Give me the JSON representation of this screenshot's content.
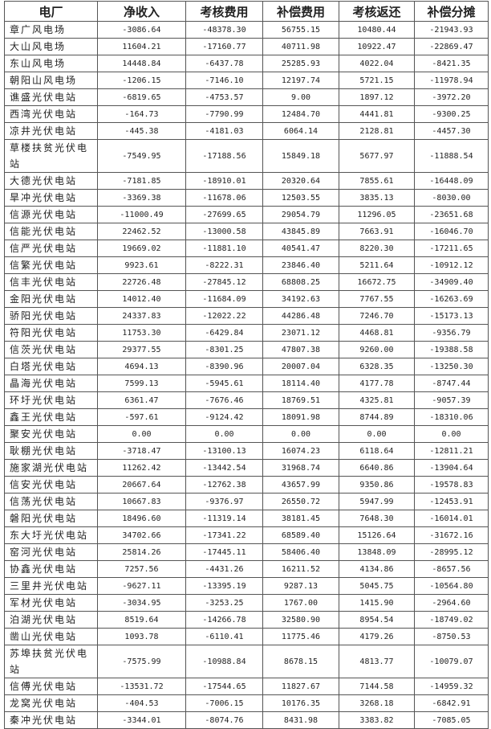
{
  "table": {
    "headers": [
      "电厂",
      "净收入",
      "考核费用",
      "补偿费用",
      "考核返还",
      "补偿分摊"
    ],
    "rows": [
      [
        "章广风电场",
        "-3086.64",
        "-48378.30",
        "56755.15",
        "10480.44",
        "-21943.93"
      ],
      [
        "大山风电场",
        "11604.21",
        "-17160.77",
        "40711.98",
        "10922.47",
        "-22869.47"
      ],
      [
        "东山风电场",
        "14448.84",
        "-6437.78",
        "25285.93",
        "4022.04",
        "-8421.35"
      ],
      [
        "朝阳山风电场",
        "-1206.15",
        "-7146.10",
        "12197.74",
        "5721.15",
        "-11978.94"
      ],
      [
        "谯盛光伏电站",
        "-6819.65",
        "-4753.57",
        "9.00",
        "1897.12",
        "-3972.20"
      ],
      [
        "西湾光伏电站",
        "-164.73",
        "-7790.99",
        "12484.70",
        "4441.81",
        "-9300.25"
      ],
      [
        "凉井光伏电站",
        "-445.38",
        "-4181.03",
        "6064.14",
        "2128.81",
        "-4457.30"
      ],
      [
        "草楼扶贫光伏电站",
        "-7549.95",
        "-17188.56",
        "15849.18",
        "5677.97",
        "-11888.54"
      ],
      [
        "大德光伏电站",
        "-7181.85",
        "-18910.01",
        "20320.64",
        "7855.61",
        "-16448.09"
      ],
      [
        "旱冲光伏电站",
        "-3369.38",
        "-11678.06",
        "12503.55",
        "3835.13",
        "-8030.00"
      ],
      [
        "信源光伏电站",
        "-11000.49",
        "-27699.65",
        "29054.79",
        "11296.05",
        "-23651.68"
      ],
      [
        "信能光伏电站",
        "22462.52",
        "-13000.58",
        "43845.89",
        "7663.91",
        "-16046.70"
      ],
      [
        "信严光伏电站",
        "19669.02",
        "-11881.10",
        "40541.47",
        "8220.30",
        "-17211.65"
      ],
      [
        "信繁光伏电站",
        "9923.61",
        "-8222.31",
        "23846.40",
        "5211.64",
        "-10912.12"
      ],
      [
        "信丰光伏电站",
        "22726.48",
        "-27845.12",
        "68808.25",
        "16672.75",
        "-34909.40"
      ],
      [
        "金阳光伏电站",
        "14012.40",
        "-11684.09",
        "34192.63",
        "7767.55",
        "-16263.69"
      ],
      [
        "骄阳光伏电站",
        "24337.83",
        "-12022.22",
        "44286.48",
        "7246.70",
        "-15173.13"
      ],
      [
        "符阳光伏电站",
        "11753.30",
        "-6429.84",
        "23071.12",
        "4468.81",
        "-9356.79"
      ],
      [
        "信茨光伏电站",
        "29377.55",
        "-8301.25",
        "47807.38",
        "9260.00",
        "-19388.58"
      ],
      [
        "白塔光伏电站",
        "4694.13",
        "-8390.96",
        "20007.04",
        "6328.35",
        "-13250.30"
      ],
      [
        "晶海光伏电站",
        "7599.13",
        "-5945.61",
        "18114.40",
        "4177.78",
        "-8747.44"
      ],
      [
        "环圩光伏电站",
        "6361.47",
        "-7676.46",
        "18769.51",
        "4325.81",
        "-9057.39"
      ],
      [
        "鑫王光伏电站",
        "-597.61",
        "-9124.42",
        "18091.98",
        "8744.89",
        "-18310.06"
      ],
      [
        "聚安光伏电站",
        "0.00",
        "0.00",
        "0.00",
        "0.00",
        "0.00"
      ],
      [
        "耿棚光伏电站",
        "-3718.47",
        "-13100.13",
        "16074.23",
        "6118.64",
        "-12811.21"
      ],
      [
        "施家湖光伏电站",
        "11262.42",
        "-13442.54",
        "31968.74",
        "6640.86",
        "-13904.64"
      ],
      [
        "信安光伏电站",
        "20667.64",
        "-12762.38",
        "43657.99",
        "9350.86",
        "-19578.83"
      ],
      [
        "信荡光伏电站",
        "10667.83",
        "-9376.97",
        "26550.72",
        "5947.99",
        "-12453.91"
      ],
      [
        "磐阳光伏电站",
        "18496.60",
        "-11319.14",
        "38181.45",
        "7648.30",
        "-16014.01"
      ],
      [
        "东大圩光伏电站",
        "34702.66",
        "-17341.22",
        "68589.40",
        "15126.64",
        "-31672.16"
      ],
      [
        "窑河光伏电站",
        "25814.26",
        "-17445.11",
        "58406.40",
        "13848.09",
        "-28995.12"
      ],
      [
        "协鑫光伏电站",
        "7257.56",
        "-4431.26",
        "16211.52",
        "4134.86",
        "-8657.56"
      ],
      [
        "三里井光伏电站",
        "-9627.11",
        "-13395.19",
        "9287.13",
        "5045.75",
        "-10564.80"
      ],
      [
        "军材光伏电站",
        "-3034.95",
        "-3253.25",
        "1767.00",
        "1415.90",
        "-2964.60"
      ],
      [
        "泊湖光伏电站",
        "8519.64",
        "-14266.78",
        "32580.90",
        "8954.54",
        "-18749.02"
      ],
      [
        "凿山光伏电站",
        "1093.78",
        "-6110.41",
        "11775.46",
        "4179.26",
        "-8750.53"
      ],
      [
        "苏埠扶贫光伏电站",
        "-7575.99",
        "-10988.84",
        "8678.15",
        "4813.77",
        "-10079.07"
      ],
      [
        "信傅光伏电站",
        "-13531.72",
        "-17544.65",
        "11827.67",
        "7144.58",
        "-14959.32"
      ],
      [
        "龙窝光伏电站",
        "-404.53",
        "-7006.15",
        "10176.35",
        "3268.18",
        "-6842.91"
      ],
      [
        "秦冲光伏电站",
        "-3344.01",
        "-8074.76",
        "8431.98",
        "3383.82",
        "-7085.05"
      ]
    ]
  }
}
